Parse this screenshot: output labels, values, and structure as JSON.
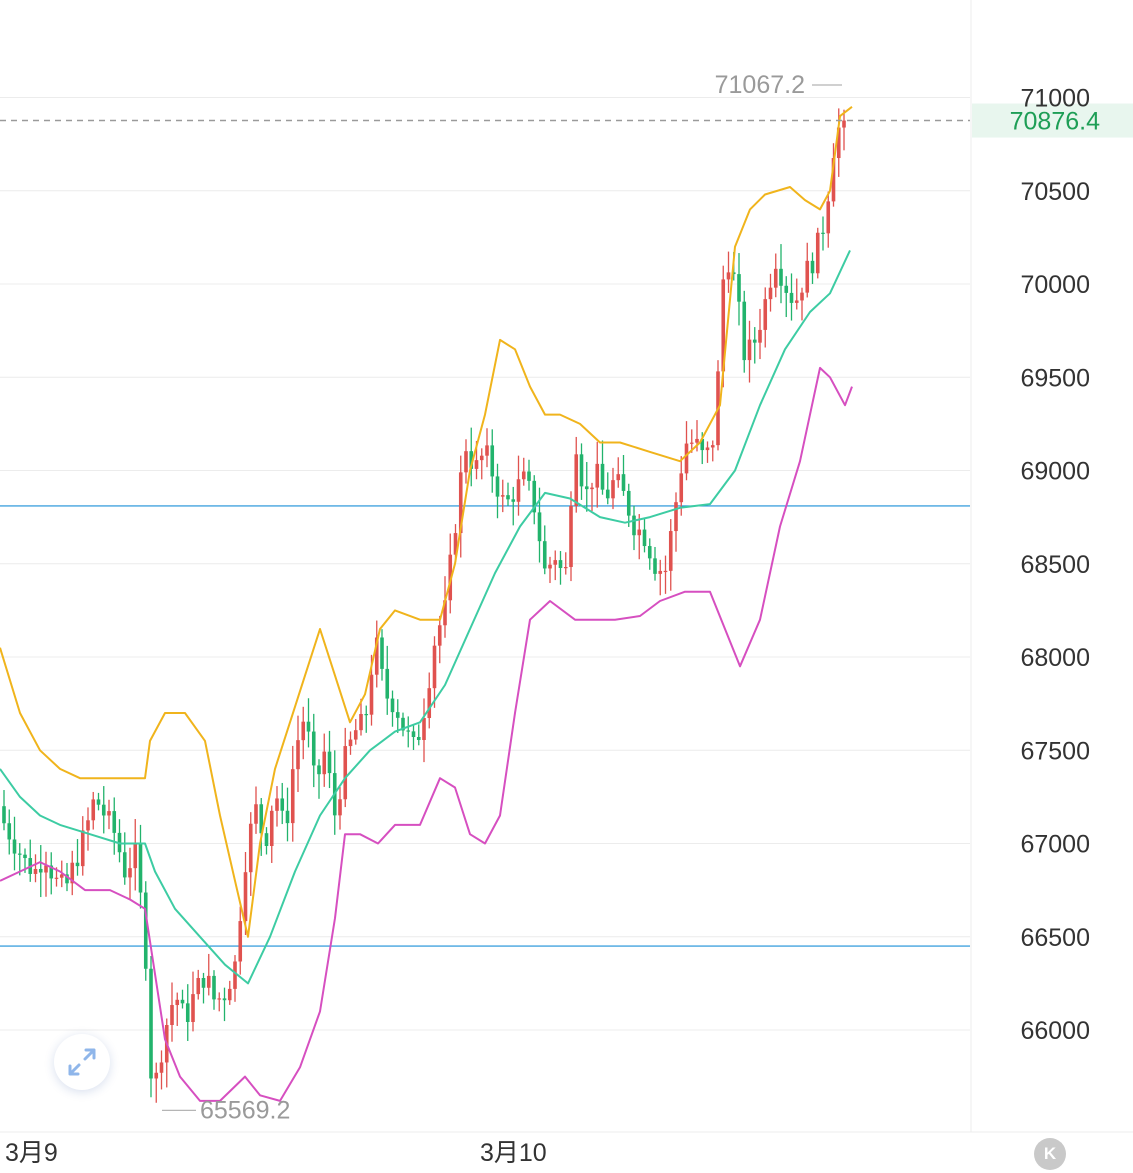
{
  "colors": {
    "up": "#e0524f",
    "down": "#22b36c",
    "upper_band": "#f0b41c",
    "middle_band": "#3dcca3",
    "lower_band": "#d64fc0",
    "hline": "#1a8fd8",
    "current_text": "#1e9e56",
    "current_bg": "#e8f6ee",
    "grid": "#ececec"
  },
  "icons": {
    "expand": "expand-arrows-icon",
    "k": "k-badge-icon"
  },
  "chart_data": {
    "type": "candlestick",
    "y_axis": {
      "ticks": [
        66000,
        66500,
        67000,
        67500,
        68000,
        68500,
        69000,
        69500,
        70000,
        70500,
        71000
      ],
      "tick_labels": [
        "66000",
        "66500",
        "67000",
        "67500",
        "68000",
        "68500",
        "69000",
        "69500",
        "70000",
        "70500",
        "71000"
      ],
      "range": [
        65430,
        71580
      ]
    },
    "x_axis": {
      "tick_labels": [
        "3月9",
        "3月10"
      ]
    },
    "annotations": {
      "high": "71067.2",
      "low": "65569.2"
    },
    "current_price": {
      "value": 70876.4,
      "label": "70876.4"
    },
    "horizontal_lines": [
      68810,
      66450
    ],
    "candle_anchors": [
      [
        0,
        67200
      ],
      [
        10,
        67100
      ],
      [
        20,
        67000
      ],
      [
        30,
        66900
      ],
      [
        40,
        66850
      ],
      [
        50,
        66950
      ],
      [
        60,
        66800
      ],
      [
        70,
        66750
      ],
      [
        80,
        66900
      ],
      [
        90,
        67050
      ],
      [
        100,
        67250
      ],
      [
        110,
        67150
      ],
      [
        120,
        67050
      ],
      [
        130,
        66850
      ],
      [
        140,
        66950
      ],
      [
        150,
        66500
      ],
      [
        155,
        65800
      ],
      [
        160,
        65700
      ],
      [
        170,
        66000
      ],
      [
        180,
        66200
      ],
      [
        190,
        66050
      ],
      [
        200,
        66200
      ],
      [
        210,
        66300
      ],
      [
        220,
        66150
      ],
      [
        230,
        66200
      ],
      [
        240,
        66350
      ],
      [
        250,
        66900
      ],
      [
        260,
        67200
      ],
      [
        270,
        67000
      ],
      [
        280,
        67300
      ],
      [
        290,
        67050
      ],
      [
        300,
        67500
      ],
      [
        310,
        67700
      ],
      [
        320,
        67300
      ],
      [
        330,
        67500
      ],
      [
        340,
        67150
      ],
      [
        350,
        67450
      ],
      [
        360,
        67600
      ],
      [
        370,
        67650
      ],
      [
        380,
        68100
      ],
      [
        390,
        67800
      ],
      [
        400,
        67750
      ],
      [
        410,
        67600
      ],
      [
        420,
        67500
      ],
      [
        430,
        67750
      ],
      [
        440,
        68100
      ],
      [
        450,
        68250
      ],
      [
        460,
        68700
      ],
      [
        470,
        69150
      ],
      [
        480,
        69000
      ],
      [
        490,
        69100
      ],
      [
        500,
        68950
      ],
      [
        510,
        68800
      ],
      [
        520,
        68900
      ],
      [
        530,
        68950
      ],
      [
        540,
        68800
      ],
      [
        550,
        68450
      ],
      [
        560,
        68550
      ],
      [
        570,
        68400
      ],
      [
        580,
        69200
      ],
      [
        590,
        68850
      ],
      [
        600,
        69000
      ],
      [
        610,
        68850
      ],
      [
        620,
        68950
      ],
      [
        630,
        68850
      ],
      [
        640,
        68700
      ],
      [
        650,
        68650
      ],
      [
        660,
        68500
      ],
      [
        670,
        68450
      ],
      [
        680,
        68800
      ],
      [
        690,
        69150
      ],
      [
        700,
        69150
      ],
      [
        710,
        69050
      ],
      [
        720,
        69200
      ],
      [
        730,
        70200
      ],
      [
        740,
        70000
      ],
      [
        750,
        69600
      ],
      [
        760,
        69700
      ],
      [
        770,
        69900
      ],
      [
        780,
        70150
      ],
      [
        790,
        70000
      ],
      [
        800,
        69900
      ],
      [
        810,
        70050
      ],
      [
        820,
        70150
      ],
      [
        830,
        70350
      ],
      [
        840,
        70800
      ],
      [
        850,
        70880
      ]
    ],
    "upper_band": [
      [
        0,
        68050
      ],
      [
        20,
        67700
      ],
      [
        40,
        67500
      ],
      [
        60,
        67400
      ],
      [
        80,
        67350
      ],
      [
        100,
        67350
      ],
      [
        130,
        67350
      ],
      [
        145,
        67350
      ],
      [
        150,
        67550
      ],
      [
        165,
        67700
      ],
      [
        185,
        67700
      ],
      [
        205,
        67550
      ],
      [
        220,
        67150
      ],
      [
        235,
        66800
      ],
      [
        248,
        66500
      ],
      [
        260,
        67000
      ],
      [
        275,
        67400
      ],
      [
        290,
        67650
      ],
      [
        305,
        67900
      ],
      [
        320,
        68150
      ],
      [
        335,
        67900
      ],
      [
        350,
        67650
      ],
      [
        365,
        67800
      ],
      [
        380,
        68150
      ],
      [
        395,
        68250
      ],
      [
        420,
        68200
      ],
      [
        440,
        68200
      ],
      [
        455,
        68500
      ],
      [
        470,
        69000
      ],
      [
        485,
        69300
      ],
      [
        500,
        69700
      ],
      [
        515,
        69650
      ],
      [
        530,
        69450
      ],
      [
        545,
        69300
      ],
      [
        560,
        69300
      ],
      [
        580,
        69250
      ],
      [
        600,
        69150
      ],
      [
        620,
        69150
      ],
      [
        650,
        69100
      ],
      [
        680,
        69050
      ],
      [
        700,
        69150
      ],
      [
        720,
        69350
      ],
      [
        735,
        70200
      ],
      [
        750,
        70400
      ],
      [
        765,
        70480
      ],
      [
        790,
        70520
      ],
      [
        805,
        70450
      ],
      [
        820,
        70400
      ],
      [
        830,
        70500
      ],
      [
        840,
        70900
      ],
      [
        852,
        70950
      ]
    ],
    "middle_band": [
      [
        0,
        67400
      ],
      [
        20,
        67250
      ],
      [
        40,
        67150
      ],
      [
        60,
        67100
      ],
      [
        90,
        67050
      ],
      [
        120,
        67000
      ],
      [
        145,
        67000
      ],
      [
        155,
        66850
      ],
      [
        175,
        66650
      ],
      [
        200,
        66500
      ],
      [
        225,
        66350
      ],
      [
        248,
        66250
      ],
      [
        270,
        66500
      ],
      [
        295,
        66850
      ],
      [
        320,
        67150
      ],
      [
        345,
        67350
      ],
      [
        370,
        67500
      ],
      [
        395,
        67600
      ],
      [
        420,
        67650
      ],
      [
        445,
        67850
      ],
      [
        470,
        68150
      ],
      [
        495,
        68450
      ],
      [
        520,
        68700
      ],
      [
        545,
        68880
      ],
      [
        570,
        68850
      ],
      [
        600,
        68750
      ],
      [
        625,
        68720
      ],
      [
        650,
        68750
      ],
      [
        680,
        68800
      ],
      [
        710,
        68820
      ],
      [
        735,
        69000
      ],
      [
        760,
        69350
      ],
      [
        785,
        69650
      ],
      [
        810,
        69850
      ],
      [
        830,
        69950
      ],
      [
        850,
        70180
      ]
    ],
    "lower_band": [
      [
        0,
        66800
      ],
      [
        20,
        66850
      ],
      [
        40,
        66900
      ],
      [
        60,
        66850
      ],
      [
        85,
        66750
      ],
      [
        110,
        66750
      ],
      [
        130,
        66700
      ],
      [
        145,
        66650
      ],
      [
        155,
        66300
      ],
      [
        165,
        65950
      ],
      [
        180,
        65750
      ],
      [
        200,
        65620
      ],
      [
        220,
        65620
      ],
      [
        245,
        65750
      ],
      [
        260,
        65650
      ],
      [
        280,
        65620
      ],
      [
        300,
        65800
      ],
      [
        320,
        66100
      ],
      [
        335,
        66600
      ],
      [
        345,
        67050
      ],
      [
        360,
        67050
      ],
      [
        378,
        67000
      ],
      [
        395,
        67100
      ],
      [
        420,
        67100
      ],
      [
        440,
        67350
      ],
      [
        455,
        67300
      ],
      [
        470,
        67050
      ],
      [
        485,
        67000
      ],
      [
        500,
        67150
      ],
      [
        515,
        67700
      ],
      [
        530,
        68200
      ],
      [
        550,
        68300
      ],
      [
        575,
        68200
      ],
      [
        590,
        68200
      ],
      [
        615,
        68200
      ],
      [
        640,
        68220
      ],
      [
        660,
        68300
      ],
      [
        685,
        68350
      ],
      [
        710,
        68350
      ],
      [
        725,
        68150
      ],
      [
        740,
        67950
      ],
      [
        760,
        68200
      ],
      [
        780,
        68700
      ],
      [
        800,
        69050
      ],
      [
        820,
        69550
      ],
      [
        830,
        69500
      ],
      [
        845,
        69350
      ],
      [
        852,
        69450
      ]
    ]
  }
}
